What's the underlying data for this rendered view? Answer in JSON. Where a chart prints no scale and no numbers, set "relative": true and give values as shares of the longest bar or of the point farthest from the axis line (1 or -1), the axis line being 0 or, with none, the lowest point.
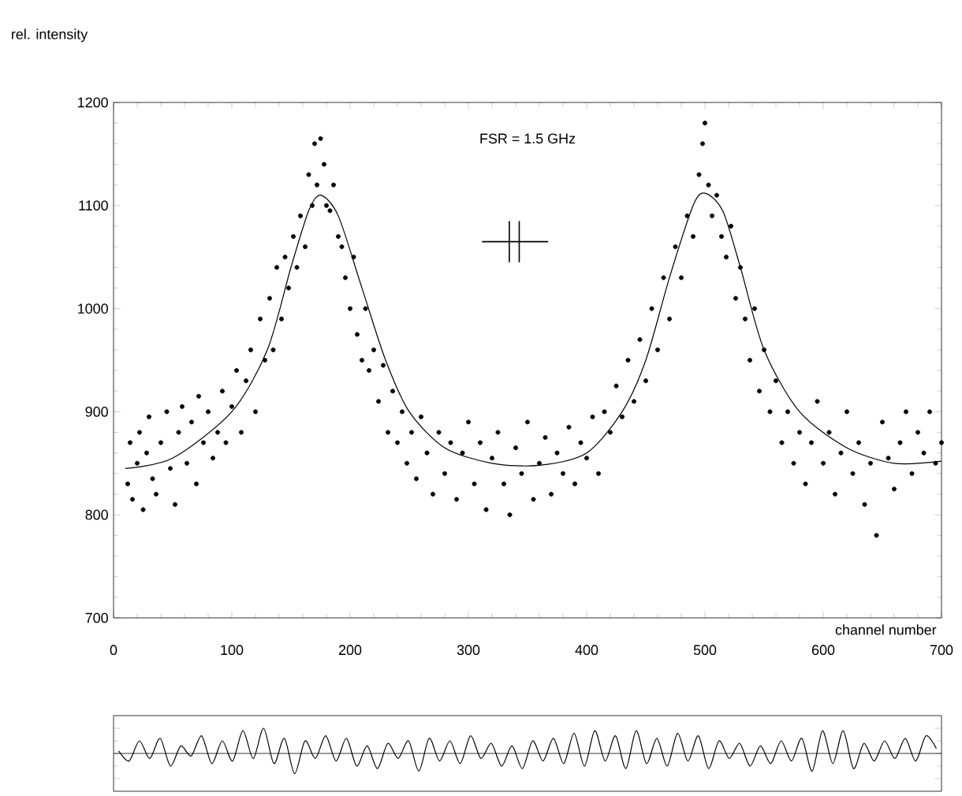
{
  "chart_data": [
    {
      "type": "scatter",
      "xlabel": "channel number",
      "ylabel": "rel. intensity",
      "annotations": [
        "FSR = 1.5 GHz"
      ],
      "xlim": [
        0,
        700
      ],
      "ylim": [
        700,
        1200
      ],
      "xticks": [
        0,
        100,
        200,
        300,
        400,
        500,
        600,
        700
      ],
      "yticks": [
        700,
        800,
        900,
        1000,
        1100,
        1200
      ],
      "series": [
        {
          "type": "scatter",
          "color": "#000000",
          "x": [
            12,
            14,
            16,
            20,
            22,
            25,
            28,
            30,
            33,
            36,
            40,
            45,
            48,
            52,
            55,
            58,
            62,
            66,
            70,
            72,
            76,
            80,
            84,
            88,
            92,
            95,
            100,
            104,
            108,
            112,
            116,
            120,
            124,
            128,
            132,
            135,
            138,
            142,
            145,
            148,
            152,
            155,
            158,
            162,
            165,
            168,
            170,
            172,
            175,
            178,
            180,
            183,
            186,
            190,
            193,
            196,
            200,
            203,
            206,
            210,
            213,
            216,
            220,
            224,
            228,
            232,
            236,
            240,
            244,
            248,
            252,
            256,
            260,
            265,
            270,
            275,
            280,
            285,
            290,
            295,
            300,
            305,
            310,
            315,
            320,
            325,
            330,
            335,
            340,
            345,
            350,
            355,
            360,
            365,
            370,
            375,
            380,
            385,
            390,
            395,
            400,
            405,
            410,
            415,
            420,
            425,
            430,
            435,
            440,
            445,
            450,
            455,
            460,
            465,
            470,
            475,
            480,
            485,
            490,
            495,
            498,
            500,
            503,
            506,
            510,
            514,
            518,
            522,
            526,
            530,
            534,
            538,
            542,
            546,
            550,
            555,
            560,
            565,
            570,
            575,
            580,
            585,
            590,
            595,
            600,
            605,
            610,
            615,
            620,
            625,
            630,
            635,
            640,
            645,
            650,
            655,
            660,
            665,
            670,
            675,
            680,
            685,
            690,
            695,
            700
          ],
          "values": [
            830,
            870,
            815,
            850,
            880,
            805,
            860,
            895,
            835,
            820,
            870,
            900,
            845,
            810,
            880,
            905,
            850,
            890,
            830,
            915,
            870,
            900,
            855,
            880,
            920,
            870,
            905,
            940,
            880,
            930,
            960,
            900,
            990,
            950,
            1010,
            960,
            1040,
            990,
            1050,
            1020,
            1070,
            1040,
            1090,
            1060,
            1130,
            1100,
            1160,
            1120,
            1165,
            1140,
            1100,
            1095,
            1120,
            1070,
            1060,
            1030,
            1000,
            1050,
            975,
            950,
            1000,
            940,
            960,
            910,
            945,
            880,
            920,
            870,
            900,
            850,
            880,
            835,
            895,
            860,
            820,
            880,
            840,
            870,
            815,
            860,
            890,
            830,
            870,
            805,
            855,
            880,
            830,
            800,
            865,
            840,
            890,
            815,
            850,
            875,
            820,
            860,
            840,
            885,
            830,
            870,
            855,
            895,
            840,
            900,
            880,
            925,
            895,
            950,
            910,
            970,
            930,
            1000,
            960,
            1030,
            990,
            1060,
            1030,
            1090,
            1070,
            1130,
            1160,
            1180,
            1120,
            1090,
            1110,
            1070,
            1050,
            1080,
            1010,
            1040,
            990,
            950,
            1000,
            920,
            960,
            900,
            930,
            870,
            900,
            850,
            880,
            830,
            870,
            910,
            850,
            880,
            820,
            860,
            900,
            840,
            870,
            810,
            850,
            780,
            890,
            855,
            825,
            870,
            900,
            840,
            880,
            860,
            900,
            850,
            870
          ]
        },
        {
          "type": "line",
          "color": "#000000",
          "x": [
            10,
            50,
            100,
            130,
            150,
            165,
            175,
            190,
            210,
            230,
            250,
            280,
            320,
            360,
            400,
            430,
            450,
            470,
            490,
            500,
            515,
            530,
            550,
            580,
            620,
            660,
            700
          ],
          "values": [
            845,
            855,
            900,
            960,
            1040,
            1095,
            1110,
            1090,
            1020,
            950,
            900,
            865,
            850,
            848,
            860,
            900,
            950,
            1030,
            1100,
            1112,
            1095,
            1040,
            960,
            900,
            865,
            850,
            852
          ]
        }
      ]
    },
    {
      "type": "line",
      "relative": true,
      "color": "#000000",
      "categories": [
        null,
        null,
        null,
        null,
        null,
        null,
        null,
        null,
        null,
        null,
        null,
        null,
        null,
        null,
        null,
        null,
        null,
        null,
        null,
        null,
        null,
        null,
        null,
        null,
        null,
        null,
        null,
        null,
        null,
        null,
        null,
        null,
        null,
        null,
        null,
        null,
        null,
        null,
        null,
        null,
        null,
        null,
        null,
        null,
        null,
        null,
        null,
        null,
        null,
        null,
        null,
        null,
        null,
        null,
        null,
        null,
        null,
        null,
        null,
        null,
        null,
        null,
        null,
        null,
        null,
        null,
        null,
        null,
        null,
        null,
        null,
        null,
        null,
        null,
        null,
        null,
        null,
        null,
        null,
        null
      ],
      "values": [
        0.1,
        -0.3,
        0.5,
        -0.2,
        0.6,
        -0.5,
        0.3,
        -0.1,
        0.7,
        -0.4,
        0.5,
        -0.3,
        0.9,
        -0.2,
        1.0,
        -0.4,
        0.6,
        -0.8,
        0.5,
        -0.2,
        0.7,
        -0.3,
        0.6,
        -0.5,
        0.3,
        -0.6,
        0.4,
        -0.2,
        0.5,
        -0.7,
        0.6,
        -0.3,
        0.5,
        -0.4,
        0.7,
        -0.2,
        0.4,
        -0.5,
        0.3,
        -0.6,
        0.5,
        -0.3,
        0.6,
        -0.4,
        0.8,
        -0.5,
        0.9,
        -0.3,
        0.7,
        -0.6,
        0.9,
        -0.4,
        0.6,
        -0.5,
        0.8,
        -0.3,
        0.7,
        -0.6,
        0.5,
        -0.2,
        0.4,
        -0.5,
        0.3,
        -0.4,
        0.5,
        -0.3,
        0.6,
        -0.7,
        0.9,
        -0.4,
        0.9,
        -0.6,
        0.4,
        -0.3,
        0.5,
        -0.2,
        0.6,
        -0.3,
        0.7,
        0.2
      ]
    }
  ]
}
